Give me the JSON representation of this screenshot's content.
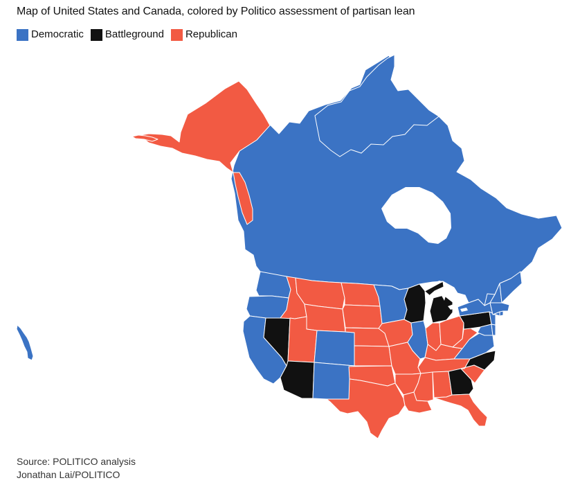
{
  "header": {
    "title": "Map of United States and Canada, colored by Politico assessment of partisan lean"
  },
  "legend": {
    "items": [
      {
        "label": "Democratic",
        "color": "#3b73c4"
      },
      {
        "label": "Battleground",
        "color": "#111111"
      },
      {
        "label": "Republican",
        "color": "#f25a43"
      }
    ]
  },
  "map": {
    "land_border_color": "#ffffff",
    "categories": {
      "democratic": "#3b73c4",
      "battleground": "#111111",
      "republican": "#f25a43"
    },
    "regions": [
      {
        "name": "Canada",
        "category": "democratic"
      },
      {
        "name": "Alaska",
        "category": "republican"
      },
      {
        "name": "Hawaii",
        "category": "democratic"
      },
      {
        "name": "Washington",
        "category": "democratic"
      },
      {
        "name": "Oregon",
        "category": "democratic"
      },
      {
        "name": "California",
        "category": "democratic"
      },
      {
        "name": "Nevada",
        "category": "battleground"
      },
      {
        "name": "Idaho",
        "category": "republican"
      },
      {
        "name": "Montana",
        "category": "republican"
      },
      {
        "name": "Wyoming",
        "category": "republican"
      },
      {
        "name": "Utah",
        "category": "republican"
      },
      {
        "name": "Arizona",
        "category": "battleground"
      },
      {
        "name": "Colorado",
        "category": "democratic"
      },
      {
        "name": "New Mexico",
        "category": "democratic"
      },
      {
        "name": "North Dakota",
        "category": "republican"
      },
      {
        "name": "South Dakota",
        "category": "republican"
      },
      {
        "name": "Nebraska",
        "category": "republican"
      },
      {
        "name": "Kansas",
        "category": "republican"
      },
      {
        "name": "Oklahoma",
        "category": "republican"
      },
      {
        "name": "Texas",
        "category": "republican"
      },
      {
        "name": "Minnesota",
        "category": "democratic"
      },
      {
        "name": "Iowa",
        "category": "republican"
      },
      {
        "name": "Missouri",
        "category": "republican"
      },
      {
        "name": "Arkansas",
        "category": "republican"
      },
      {
        "name": "Louisiana",
        "category": "republican"
      },
      {
        "name": "Wisconsin",
        "category": "battleground"
      },
      {
        "name": "Michigan",
        "category": "battleground"
      },
      {
        "name": "Illinois",
        "category": "democratic"
      },
      {
        "name": "Indiana",
        "category": "republican"
      },
      {
        "name": "Ohio",
        "category": "republican"
      },
      {
        "name": "Kentucky",
        "category": "republican"
      },
      {
        "name": "Tennessee",
        "category": "republican"
      },
      {
        "name": "Mississippi",
        "category": "republican"
      },
      {
        "name": "Alabama",
        "category": "republican"
      },
      {
        "name": "Georgia",
        "category": "battleground"
      },
      {
        "name": "Florida",
        "category": "republican"
      },
      {
        "name": "South Carolina",
        "category": "republican"
      },
      {
        "name": "North Carolina",
        "category": "battleground"
      },
      {
        "name": "Virginia",
        "category": "democratic"
      },
      {
        "name": "West Virginia",
        "category": "republican"
      },
      {
        "name": "Pennsylvania",
        "category": "battleground"
      },
      {
        "name": "New York",
        "category": "democratic"
      },
      {
        "name": "Maryland",
        "category": "democratic"
      },
      {
        "name": "Delaware",
        "category": "democratic"
      },
      {
        "name": "New Jersey",
        "category": "democratic"
      },
      {
        "name": "Connecticut",
        "category": "democratic"
      },
      {
        "name": "Rhode Island",
        "category": "democratic"
      },
      {
        "name": "Massachusetts",
        "category": "democratic"
      },
      {
        "name": "Vermont",
        "category": "democratic"
      },
      {
        "name": "New Hampshire",
        "category": "democratic"
      },
      {
        "name": "Maine",
        "category": "democratic"
      }
    ]
  },
  "footer": {
    "source": "Source: POLITICO analysis",
    "credit": "Jonathan Lai/POLITICO"
  }
}
